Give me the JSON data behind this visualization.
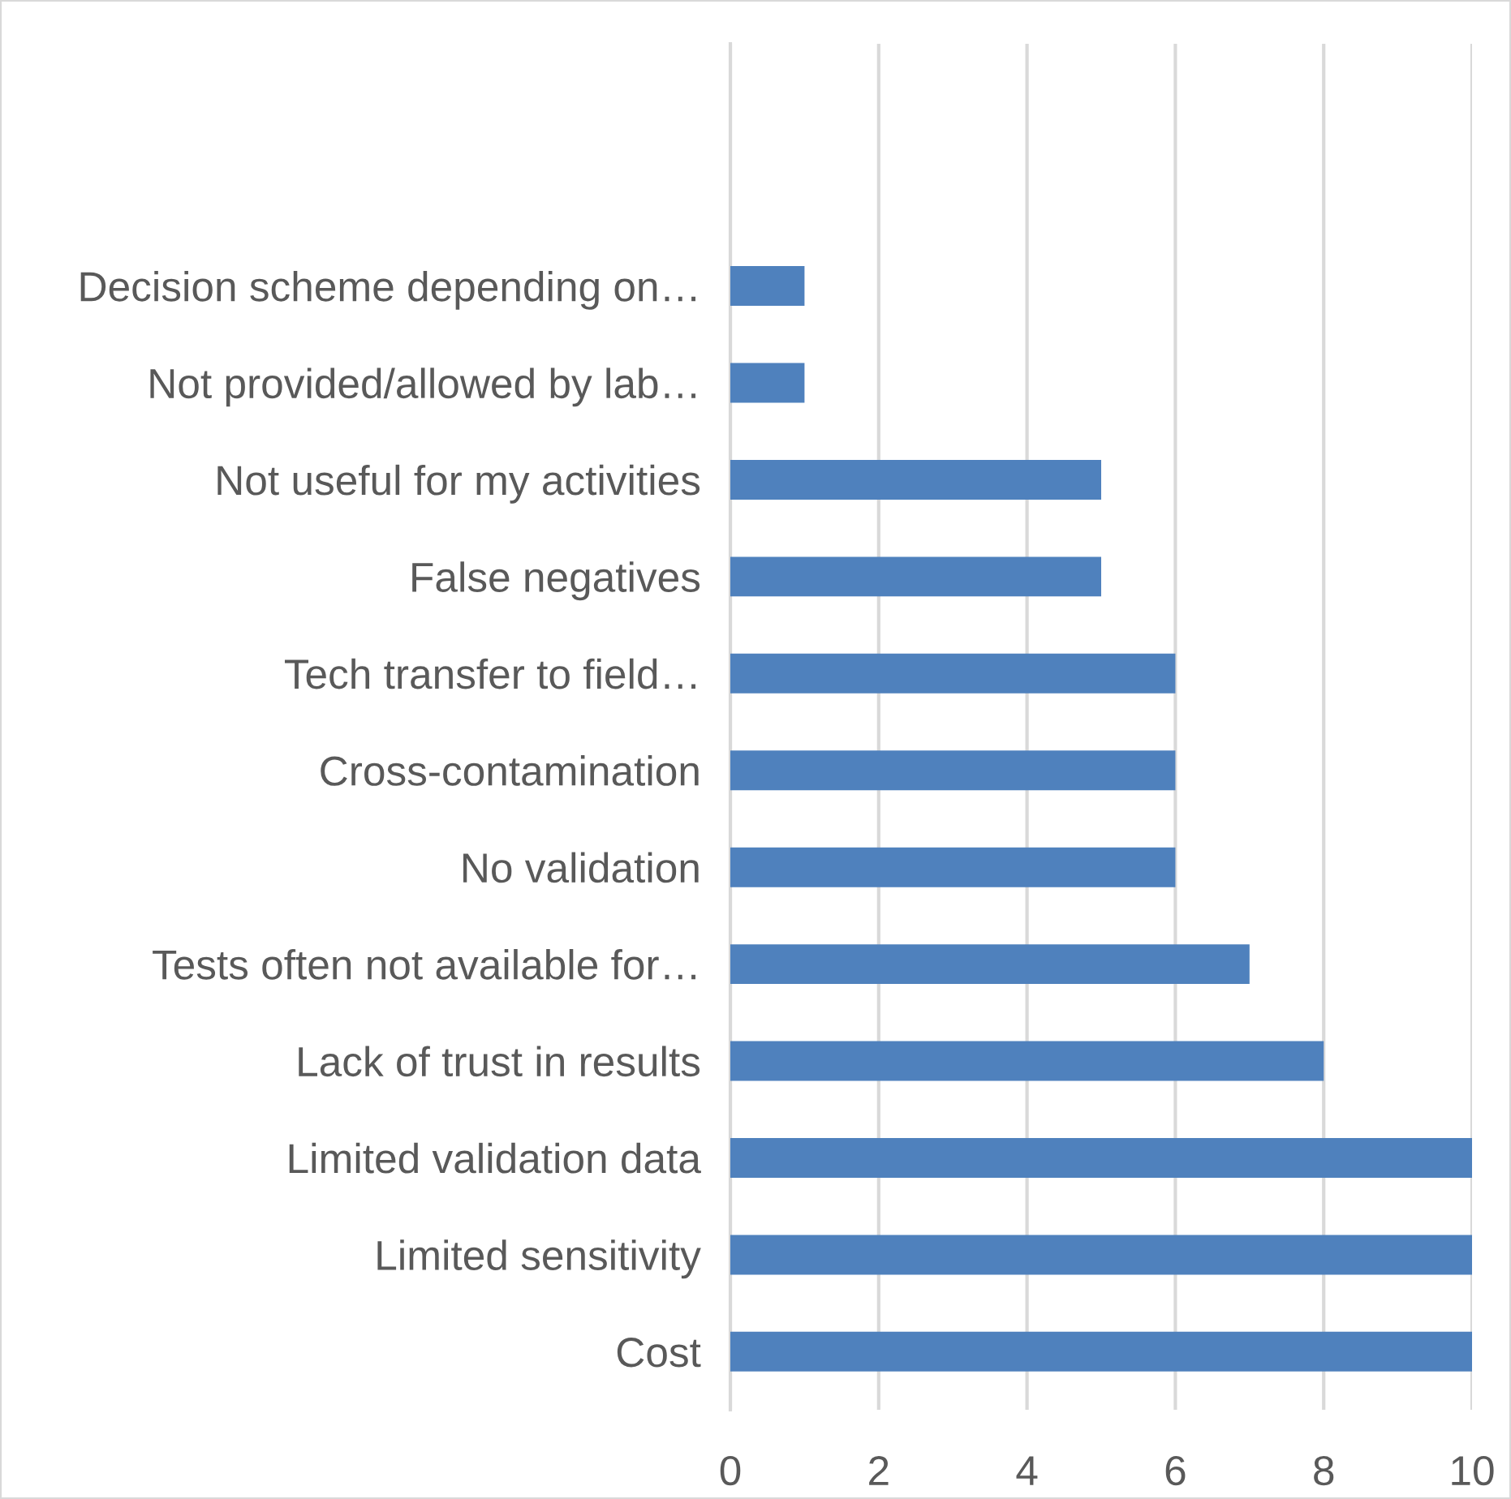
{
  "chart_data": {
    "type": "bar",
    "orientation": "horizontal",
    "categories": [
      "Decision scheme depending on…",
      "Not provided/allowed by lab…",
      "Not useful for my activities",
      "False negatives",
      "Tech transfer to field…",
      "Cross-contamination",
      "No validation",
      "Tests often not available for…",
      "Lack of trust in results",
      "Limited validation data",
      "Limited sensitivity",
      "Cost"
    ],
    "values": [
      1,
      1,
      5,
      5,
      6,
      6,
      6,
      7,
      8,
      10,
      10,
      10
    ],
    "color": "#4f81bd",
    "xlim": [
      0,
      10
    ],
    "xticks": [
      0,
      2,
      4,
      6,
      8,
      10
    ],
    "grid": "x"
  }
}
